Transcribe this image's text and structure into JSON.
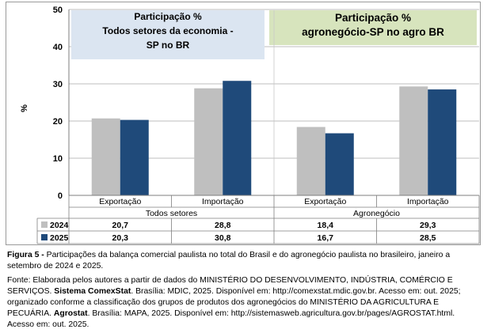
{
  "chart_data": {
    "type": "bar",
    "ylabel": "%",
    "ylim": [
      0,
      50
    ],
    "yticks": [
      0,
      10,
      20,
      30,
      40,
      50
    ],
    "groups": [
      {
        "name": "Todos setores",
        "categories": [
          "Exportação",
          "Importação"
        ]
      },
      {
        "name": "Agronegócio",
        "categories": [
          "Exportação",
          "Importação"
        ]
      }
    ],
    "series": [
      {
        "name": "2024",
        "color": "#bfbfbf",
        "values": [
          20.7,
          28.8,
          18.4,
          29.3
        ],
        "labels": [
          "20,7",
          "28,8",
          "18,4",
          "29,3"
        ]
      },
      {
        "name": "2025",
        "color": "#1f4a7a",
        "values": [
          20.3,
          30.8,
          16.7,
          28.5
        ],
        "labels": [
          "20,3",
          "30,8",
          "16,7",
          "28,5"
        ]
      }
    ],
    "panels": [
      {
        "lines": [
          "Participação %",
          "Todos setores da economia -",
          "SP no BR"
        ],
        "color": "#dbe5f1"
      },
      {
        "lines": [
          "Participação %",
          "agronegócio-SP  no agro BR"
        ],
        "color": "#d7e4bd"
      }
    ]
  },
  "caption": {
    "label": "Figura 5 - ",
    "text": "Participações da balança comercial paulista no total do Brasil e do agronegócio paulista no brasileiro, janeiro a setembro de 2024 e 2025."
  },
  "source": {
    "part1": "Fonte: Elaborada pelos autores a partir de dados do MINISTÉRIO DO DESENVOLVIMENTO, INDÚSTRIA, COMÉRCIO E SERVIÇOS. ",
    "bold1": "Sistema ComexStat",
    "part2": ". Brasília: MDIC, 2025. Disponível em: http://comexstat.mdic.gov.br. Acesso em: out. 2025; organizado conforme a classificação dos grupos de produtos dos agronegócios do MINISTÉRIO DA AGRICULTURA E PECUÁRIA. ",
    "bold2": "Agrostat",
    "part3": ". Brasília: MAPA, 2025. Disponível em: http://sistemasweb.agricultura.gov.br/pages/AGROSTAT.html. Acesso em: out. 2025."
  }
}
